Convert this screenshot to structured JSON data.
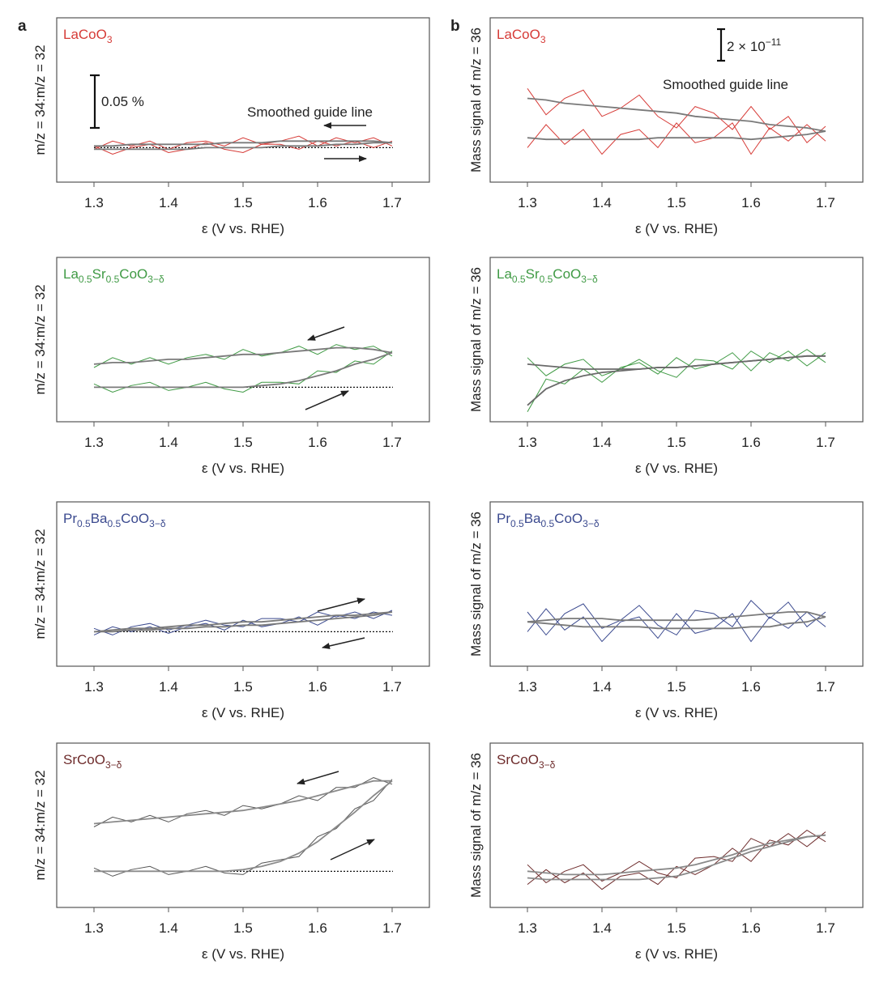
{
  "chart_data": [
    {
      "type": "line",
      "panel_label": "a",
      "sample_label": [
        {
          "text": "LaCoO"
        },
        {
          "text": "3",
          "sub": true
        }
      ],
      "ylabel": "m/z = 34:m/z = 32",
      "xlabel": "ε (V vs. RHE)",
      "scale_bar_label": [
        {
          "text": "0.05 %"
        }
      ],
      "guide_label": "Smoothed guide line",
      "color": "#d63a36",
      "x": [
        1.3,
        1.325,
        1.35,
        1.375,
        1.4,
        1.425,
        1.45,
        1.475,
        1.5,
        1.525,
        1.55,
        1.575,
        1.6,
        1.625,
        1.65,
        1.675,
        1.7
      ],
      "xlim": [
        1.25,
        1.75
      ],
      "xticks": [
        1.3,
        1.4,
        1.5,
        1.6,
        1.7
      ],
      "ylim": [
        0,
        1
      ],
      "reference_line": 0.21,
      "series": [
        {
          "color": "#d63a36",
          "values": [
            0.22,
            0.17,
            0.21,
            0.23,
            0.18,
            0.2,
            0.24,
            0.2,
            0.18,
            0.23,
            0.23,
            0.2,
            0.25,
            0.22,
            0.25,
            0.21,
            0.25
          ]
        },
        {
          "color": "#d63a36",
          "values": [
            0.2,
            0.25,
            0.22,
            0.25,
            0.2,
            0.24,
            0.25,
            0.22,
            0.27,
            0.23,
            0.25,
            0.28,
            0.22,
            0.27,
            0.24,
            0.27,
            0.22
          ]
        },
        {
          "color": "#7a7a7a",
          "values": [
            0.2,
            0.2,
            0.2,
            0.2,
            0.2,
            0.2,
            0.21,
            0.21,
            0.21,
            0.21,
            0.22,
            0.22,
            0.22,
            0.23,
            0.23,
            0.24,
            0.24
          ]
        },
        {
          "color": "#7a7a7a",
          "values": [
            0.22,
            0.22,
            0.23,
            0.23,
            0.23,
            0.23,
            0.23,
            0.24,
            0.24,
            0.24,
            0.25,
            0.25,
            0.25,
            0.25,
            0.25,
            0.25,
            0.24
          ]
        }
      ]
    },
    {
      "type": "line",
      "sample_label": [
        {
          "text": "La"
        },
        {
          "text": "0.5",
          "sub": true
        },
        {
          "text": "Sr"
        },
        {
          "text": "0.5",
          "sub": true
        },
        {
          "text": "CoO"
        },
        {
          "text": "3−δ",
          "sub": true
        }
      ],
      "ylabel": "m/z = 34:m/z = 32",
      "xlabel": "ε (V vs. RHE)",
      "color": "#3f9a44",
      "x": [
        1.3,
        1.325,
        1.35,
        1.375,
        1.4,
        1.425,
        1.45,
        1.475,
        1.5,
        1.525,
        1.55,
        1.575,
        1.6,
        1.625,
        1.65,
        1.675,
        1.7
      ],
      "xlim": [
        1.25,
        1.75
      ],
      "xticks": [
        1.3,
        1.4,
        1.5,
        1.6,
        1.7
      ],
      "ylim": [
        0,
        1
      ],
      "reference_line": 0.21,
      "series": [
        {
          "color": "#3f9a44",
          "values": [
            0.23,
            0.18,
            0.22,
            0.24,
            0.19,
            0.21,
            0.24,
            0.2,
            0.18,
            0.24,
            0.24,
            0.23,
            0.31,
            0.3,
            0.37,
            0.35,
            0.43
          ]
        },
        {
          "color": "#3f9a44",
          "values": [
            0.33,
            0.39,
            0.35,
            0.39,
            0.35,
            0.39,
            0.41,
            0.38,
            0.44,
            0.4,
            0.42,
            0.46,
            0.41,
            0.47,
            0.44,
            0.46,
            0.4
          ]
        },
        {
          "color": "#7a7a7a",
          "values": [
            0.21,
            0.21,
            0.21,
            0.21,
            0.21,
            0.21,
            0.21,
            0.21,
            0.21,
            0.22,
            0.23,
            0.25,
            0.28,
            0.31,
            0.35,
            0.38,
            0.42
          ]
        },
        {
          "color": "#7a7a7a",
          "values": [
            0.35,
            0.36,
            0.36,
            0.37,
            0.38,
            0.38,
            0.39,
            0.4,
            0.41,
            0.41,
            0.42,
            0.43,
            0.44,
            0.45,
            0.45,
            0.44,
            0.42
          ]
        }
      ]
    },
    {
      "type": "line",
      "sample_label": [
        {
          "text": "Pr"
        },
        {
          "text": "0.5",
          "sub": true
        },
        {
          "text": "Ba"
        },
        {
          "text": "0.5",
          "sub": true
        },
        {
          "text": "CoO"
        },
        {
          "text": "3−δ",
          "sub": true
        }
      ],
      "ylabel": "m/z = 34:m/z = 32",
      "xlabel": "ε (V vs. RHE)",
      "color": "#3b4a8f",
      "x": [
        1.3,
        1.325,
        1.35,
        1.375,
        1.4,
        1.425,
        1.45,
        1.475,
        1.5,
        1.525,
        1.55,
        1.575,
        1.6,
        1.625,
        1.65,
        1.675,
        1.7
      ],
      "xlim": [
        1.25,
        1.75
      ],
      "xticks": [
        1.3,
        1.4,
        1.5,
        1.6,
        1.7
      ],
      "ylim": [
        0,
        1
      ],
      "reference_line": 0.21,
      "series": [
        {
          "color": "#3b4a8f",
          "values": [
            0.23,
            0.19,
            0.24,
            0.26,
            0.22,
            0.25,
            0.28,
            0.25,
            0.24,
            0.29,
            0.29,
            0.27,
            0.33,
            0.3,
            0.33,
            0.29,
            0.34
          ]
        },
        {
          "color": "#3b4a8f",
          "values": [
            0.19,
            0.24,
            0.21,
            0.24,
            0.2,
            0.24,
            0.26,
            0.22,
            0.28,
            0.24,
            0.26,
            0.3,
            0.25,
            0.31,
            0.29,
            0.33,
            0.31
          ]
        },
        {
          "color": "#7a7a7a",
          "values": [
            0.21,
            0.22,
            0.23,
            0.23,
            0.24,
            0.25,
            0.25,
            0.26,
            0.27,
            0.27,
            0.28,
            0.29,
            0.3,
            0.31,
            0.31,
            0.32,
            0.33
          ]
        },
        {
          "color": "#7a7a7a",
          "values": [
            0.21,
            0.21,
            0.22,
            0.22,
            0.23,
            0.23,
            0.24,
            0.24,
            0.25,
            0.25,
            0.26,
            0.27,
            0.28,
            0.29,
            0.3,
            0.31,
            0.33
          ]
        }
      ]
    },
    {
      "type": "line",
      "sample_label": [
        {
          "text": "SrCoO"
        },
        {
          "text": "3−δ",
          "sub": true
        }
      ],
      "ylabel": "m/z = 34:m/z = 32",
      "xlabel": "ε (V vs. RHE)",
      "color": "#6e2c2c",
      "x": [
        1.3,
        1.325,
        1.35,
        1.375,
        1.4,
        1.425,
        1.45,
        1.475,
        1.5,
        1.525,
        1.55,
        1.575,
        1.6,
        1.625,
        1.65,
        1.675,
        1.7
      ],
      "xlim": [
        1.25,
        1.75
      ],
      "xticks": [
        1.3,
        1.4,
        1.5,
        1.6,
        1.7
      ],
      "ylim": [
        0,
        1
      ],
      "reference_line": 0.22,
      "series": [
        {
          "color": "#555555",
          "values": [
            0.24,
            0.19,
            0.23,
            0.25,
            0.2,
            0.22,
            0.25,
            0.21,
            0.2,
            0.27,
            0.29,
            0.31,
            0.43,
            0.48,
            0.6,
            0.65,
            0.78
          ]
        },
        {
          "color": "#555555",
          "values": [
            0.49,
            0.55,
            0.52,
            0.56,
            0.52,
            0.57,
            0.59,
            0.56,
            0.62,
            0.6,
            0.63,
            0.68,
            0.65,
            0.73,
            0.73,
            0.79,
            0.75
          ]
        },
        {
          "color": "#8a8a8a",
          "values": [
            0.22,
            0.22,
            0.22,
            0.22,
            0.22,
            0.22,
            0.22,
            0.22,
            0.23,
            0.25,
            0.28,
            0.33,
            0.4,
            0.49,
            0.58,
            0.68,
            0.77
          ]
        },
        {
          "color": "#8a8a8a",
          "values": [
            0.51,
            0.52,
            0.53,
            0.54,
            0.55,
            0.56,
            0.57,
            0.58,
            0.59,
            0.61,
            0.63,
            0.65,
            0.68,
            0.71,
            0.74,
            0.77,
            0.77
          ]
        }
      ]
    },
    {
      "type": "line",
      "panel_label": "b",
      "sample_label": [
        {
          "text": "LaCoO"
        },
        {
          "text": "3",
          "sub": true
        }
      ],
      "ylabel": "Mass signal of m/z = 36",
      "xlabel": "ε (V vs. RHE)",
      "scale_bar_label": [
        {
          "text": "2 × 10"
        },
        {
          "text": "−11",
          "sup": true
        }
      ],
      "guide_label": "Smoothed guide line",
      "color": "#d63a36",
      "x": [
        1.3,
        1.325,
        1.35,
        1.375,
        1.4,
        1.425,
        1.45,
        1.475,
        1.5,
        1.525,
        1.55,
        1.575,
        1.6,
        1.625,
        1.65,
        1.675,
        1.7
      ],
      "xlim": [
        1.25,
        1.75
      ],
      "xticks": [
        1.3,
        1.4,
        1.5,
        1.6,
        1.7
      ],
      "ylim": [
        0,
        1
      ],
      "series": [
        {
          "color": "#d63a36",
          "values": [
            0.57,
            0.41,
            0.51,
            0.56,
            0.4,
            0.45,
            0.53,
            0.4,
            0.33,
            0.46,
            0.42,
            0.32,
            0.46,
            0.32,
            0.4,
            0.24,
            0.34
          ]
        },
        {
          "color": "#d63a36",
          "values": [
            0.21,
            0.35,
            0.23,
            0.32,
            0.17,
            0.29,
            0.32,
            0.21,
            0.36,
            0.24,
            0.27,
            0.36,
            0.17,
            0.33,
            0.25,
            0.35,
            0.25
          ]
        },
        {
          "color": "#7a7a7a",
          "values": [
            0.51,
            0.5,
            0.48,
            0.47,
            0.46,
            0.45,
            0.44,
            0.43,
            0.42,
            0.4,
            0.39,
            0.38,
            0.37,
            0.35,
            0.34,
            0.33,
            0.31
          ]
        },
        {
          "color": "#7a7a7a",
          "values": [
            0.27,
            0.26,
            0.26,
            0.26,
            0.26,
            0.26,
            0.26,
            0.27,
            0.27,
            0.27,
            0.27,
            0.27,
            0.26,
            0.27,
            0.28,
            0.29,
            0.31
          ]
        }
      ]
    },
    {
      "type": "line",
      "sample_label": [
        {
          "text": "La"
        },
        {
          "text": "0.5",
          "sub": true
        },
        {
          "text": "Sr"
        },
        {
          "text": "0.5",
          "sub": true
        },
        {
          "text": "CoO"
        },
        {
          "text": "3−δ",
          "sub": true
        }
      ],
      "ylabel": "Mass signal of m/z = 36",
      "xlabel": "ε (V vs. RHE)",
      "color": "#3f9a44",
      "x": [
        1.3,
        1.325,
        1.35,
        1.375,
        1.4,
        1.425,
        1.45,
        1.475,
        1.5,
        1.525,
        1.55,
        1.575,
        1.6,
        1.625,
        1.65,
        1.675,
        1.7
      ],
      "xlim": [
        1.25,
        1.75
      ],
      "xticks": [
        1.3,
        1.4,
        1.5,
        1.6,
        1.7
      ],
      "ylim": [
        0,
        1
      ],
      "series": [
        {
          "color": "#3f9a44",
          "values": [
            0.39,
            0.28,
            0.35,
            0.38,
            0.28,
            0.32,
            0.38,
            0.31,
            0.27,
            0.38,
            0.37,
            0.32,
            0.43,
            0.36,
            0.43,
            0.34,
            0.42
          ]
        },
        {
          "color": "#3f9a44",
          "values": [
            0.06,
            0.26,
            0.23,
            0.32,
            0.24,
            0.33,
            0.36,
            0.29,
            0.39,
            0.32,
            0.35,
            0.42,
            0.31,
            0.42,
            0.37,
            0.44,
            0.36
          ]
        },
        {
          "color": "#6a6a6a",
          "values": [
            0.35,
            0.34,
            0.33,
            0.32,
            0.32,
            0.32,
            0.32,
            0.33,
            0.33,
            0.34,
            0.35,
            0.36,
            0.37,
            0.38,
            0.39,
            0.4,
            0.4
          ]
        },
        {
          "color": "#6a6a6a",
          "values": [
            0.1,
            0.2,
            0.25,
            0.28,
            0.3,
            0.31,
            0.32,
            0.33,
            0.33,
            0.34,
            0.35,
            0.36,
            0.37,
            0.38,
            0.39,
            0.4,
            0.4
          ]
        }
      ]
    },
    {
      "type": "line",
      "sample_label": [
        {
          "text": "Pr"
        },
        {
          "text": "0.5",
          "sub": true
        },
        {
          "text": "Ba"
        },
        {
          "text": "0.5",
          "sub": true
        },
        {
          "text": "CoO"
        },
        {
          "text": "3−δ",
          "sub": true
        }
      ],
      "ylabel": "Mass signal of m/z = 36",
      "xlabel": "ε (V vs. RHE)",
      "color": "#3b4a8f",
      "x": [
        1.3,
        1.325,
        1.35,
        1.375,
        1.4,
        1.425,
        1.45,
        1.475,
        1.5,
        1.525,
        1.55,
        1.575,
        1.6,
        1.625,
        1.65,
        1.675,
        1.7
      ],
      "xlim": [
        1.25,
        1.75
      ],
      "xticks": [
        1.3,
        1.4,
        1.5,
        1.6,
        1.7
      ],
      "ylim": [
        0,
        1
      ],
      "series": [
        {
          "color": "#3b4a8f",
          "values": [
            0.33,
            0.19,
            0.32,
            0.38,
            0.23,
            0.28,
            0.37,
            0.25,
            0.19,
            0.34,
            0.32,
            0.24,
            0.4,
            0.29,
            0.39,
            0.24,
            0.33
          ]
        },
        {
          "color": "#3b4a8f",
          "values": [
            0.21,
            0.35,
            0.22,
            0.3,
            0.15,
            0.27,
            0.3,
            0.17,
            0.32,
            0.2,
            0.23,
            0.32,
            0.15,
            0.3,
            0.23,
            0.33,
            0.24
          ]
        },
        {
          "color": "#7a7a7a",
          "values": [
            0.27,
            0.28,
            0.29,
            0.29,
            0.29,
            0.28,
            0.28,
            0.28,
            0.28,
            0.28,
            0.29,
            0.3,
            0.31,
            0.32,
            0.33,
            0.33,
            0.3
          ]
        },
        {
          "color": "#7a7a7a",
          "values": [
            0.27,
            0.26,
            0.25,
            0.24,
            0.24,
            0.24,
            0.24,
            0.23,
            0.23,
            0.23,
            0.23,
            0.23,
            0.24,
            0.24,
            0.26,
            0.27,
            0.3
          ]
        }
      ]
    },
    {
      "type": "line",
      "sample_label": [
        {
          "text": "SrCoO"
        },
        {
          "text": "3−δ",
          "sub": true
        }
      ],
      "ylabel": "Mass signal of m/z = 36",
      "xlabel": "ε (V vs. RHE)",
      "color": "#6e2c2c",
      "x": [
        1.3,
        1.325,
        1.35,
        1.375,
        1.4,
        1.425,
        1.45,
        1.475,
        1.5,
        1.525,
        1.55,
        1.575,
        1.6,
        1.625,
        1.65,
        1.675,
        1.7
      ],
      "xlim": [
        1.25,
        1.75
      ],
      "xticks": [
        1.3,
        1.4,
        1.5,
        1.6,
        1.7
      ],
      "ylim": [
        0,
        1
      ],
      "series": [
        {
          "color": "#6e2c2c",
          "values": [
            0.26,
            0.15,
            0.22,
            0.26,
            0.16,
            0.21,
            0.28,
            0.21,
            0.18,
            0.3,
            0.31,
            0.28,
            0.42,
            0.37,
            0.45,
            0.37,
            0.46
          ]
        },
        {
          "color": "#6e2c2c",
          "values": [
            0.14,
            0.23,
            0.15,
            0.21,
            0.11,
            0.19,
            0.21,
            0.14,
            0.25,
            0.2,
            0.26,
            0.36,
            0.28,
            0.41,
            0.38,
            0.47,
            0.4
          ]
        },
        {
          "color": "#8a8a8a",
          "values": [
            0.22,
            0.21,
            0.2,
            0.2,
            0.2,
            0.21,
            0.22,
            0.23,
            0.24,
            0.26,
            0.29,
            0.32,
            0.36,
            0.39,
            0.41,
            0.43,
            0.44
          ]
        },
        {
          "color": "#8a8a8a",
          "values": [
            0.18,
            0.17,
            0.17,
            0.17,
            0.17,
            0.17,
            0.17,
            0.18,
            0.19,
            0.22,
            0.26,
            0.3,
            0.34,
            0.37,
            0.4,
            0.43,
            0.44
          ]
        }
      ]
    }
  ]
}
